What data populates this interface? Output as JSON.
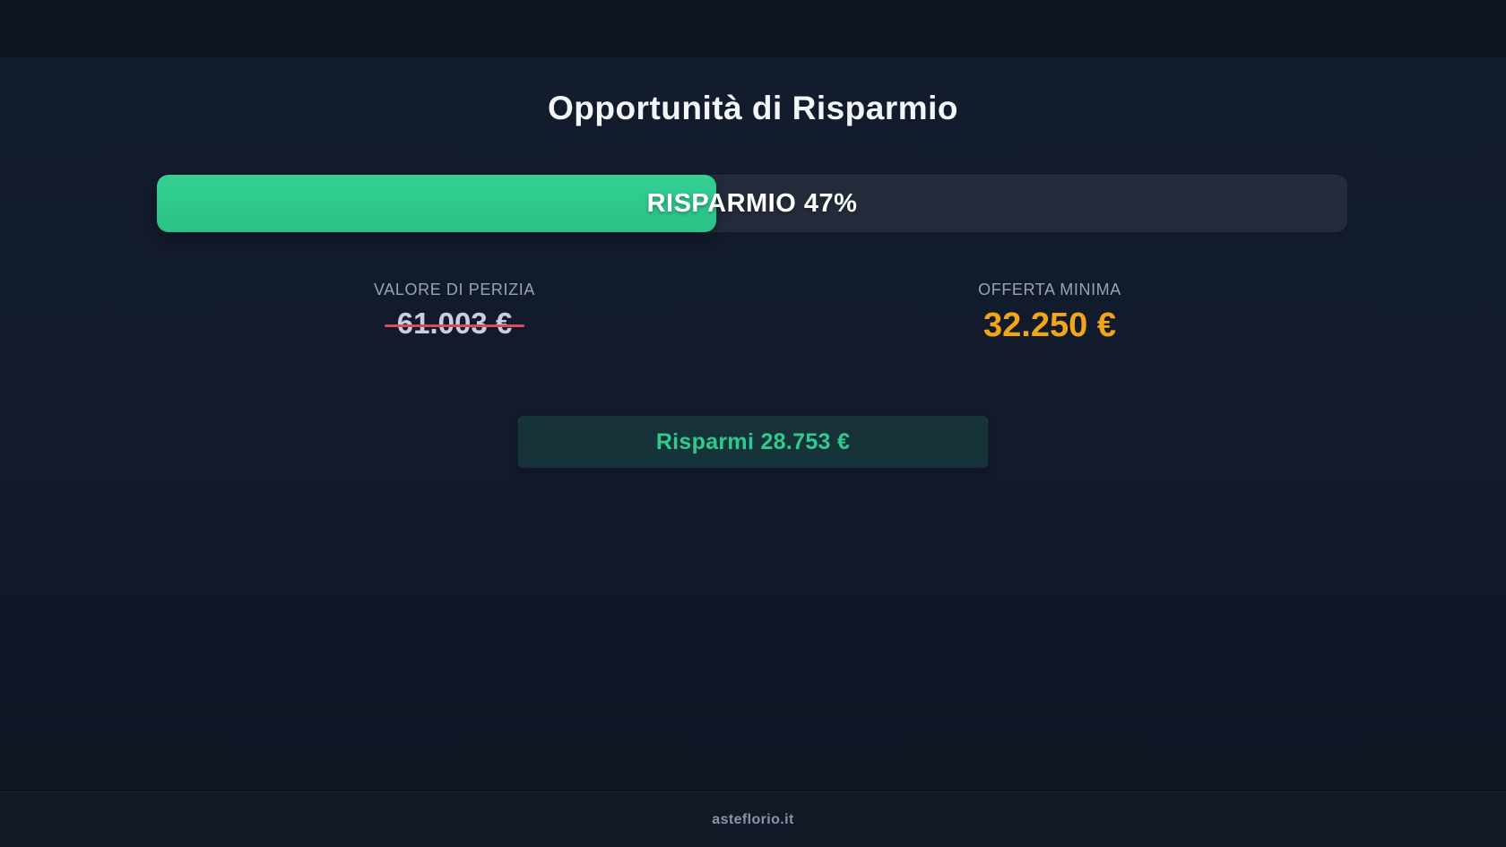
{
  "title": "Opportunità di Risparmio",
  "progress": {
    "label": "RISPARMIO 47%",
    "percent": 47,
    "fill_color_top": "#33d092",
    "fill_color_bottom": "#2bc287",
    "track_color": "#242c3b"
  },
  "values": {
    "appraisal": {
      "label": "VALORE DI PERIZIA",
      "amount": "61.003 €",
      "strikethrough": true,
      "strike_color": "#e0485e",
      "text_color": "#c9d0dc"
    },
    "minimum_offer": {
      "label": "OFFERTA MINIMA",
      "amount": "32.250 €",
      "text_color": "#f1a51a"
    }
  },
  "savings_badge": {
    "text": "Risparmi 28.753 €",
    "text_color": "#2fcb8e",
    "bg_color": "rgba(46,204,143,0.14)"
  },
  "footer": {
    "site_label": "asteflorio.it"
  },
  "theme": {
    "background": "#121a2b",
    "title_color": "#f4f6f9",
    "label_color": "#99a2b4"
  }
}
